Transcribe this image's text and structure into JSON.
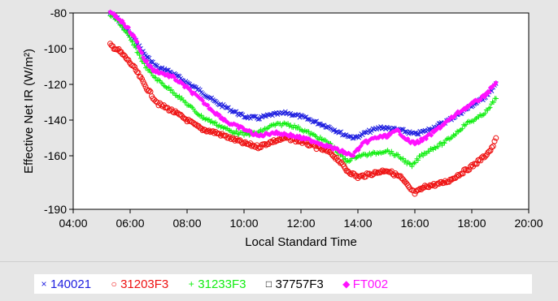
{
  "chart_data": {
    "type": "scatter",
    "xlabel": "Local Standard Time",
    "ylabel": "Effective Net IR (W/m²)",
    "x_ticks": [
      "04:00",
      "06:00",
      "08:00",
      "10:00",
      "12:00",
      "14:00",
      "16:00",
      "18:00",
      "20:00"
    ],
    "y_ticks": [
      "-80",
      "-100",
      "-120",
      "-140",
      "-160",
      "-190"
    ],
    "xlim": [
      4,
      20
    ],
    "ylim": [
      -190,
      -80
    ],
    "grid": false,
    "legend_placement": "bottom",
    "series": [
      {
        "name": "140021",
        "marker": "×",
        "color": "#2020e0",
        "points": [
          [
            5.3,
            -80
          ],
          [
            5.6,
            -84
          ],
          [
            5.9,
            -90
          ],
          [
            6.2,
            -96
          ],
          [
            6.5,
            -103
          ],
          [
            6.8,
            -108
          ],
          [
            7.0,
            -111
          ],
          [
            7.3,
            -112
          ],
          [
            7.6,
            -115
          ],
          [
            8.0,
            -119
          ],
          [
            8.5,
            -124
          ],
          [
            9.0,
            -130
          ],
          [
            9.5,
            -134
          ],
          [
            10.0,
            -138
          ],
          [
            10.5,
            -139
          ],
          [
            11.0,
            -137
          ],
          [
            11.5,
            -136
          ],
          [
            12.0,
            -138
          ],
          [
            12.5,
            -141
          ],
          [
            13.0,
            -144
          ],
          [
            13.5,
            -148
          ],
          [
            13.9,
            -150
          ],
          [
            14.3,
            -147
          ],
          [
            14.8,
            -144
          ],
          [
            15.2,
            -145
          ],
          [
            15.6,
            -146
          ],
          [
            16.0,
            -148
          ],
          [
            16.4,
            -146
          ],
          [
            16.8,
            -143
          ],
          [
            17.2,
            -140
          ],
          [
            17.6,
            -136
          ],
          [
            18.0,
            -132
          ],
          [
            18.4,
            -128
          ],
          [
            18.7,
            -123
          ],
          [
            18.9,
            -119
          ]
        ]
      },
      {
        "name": "31203F3",
        "marker": "○",
        "color": "#ee1111",
        "points": [
          [
            5.3,
            -98
          ],
          [
            5.6,
            -101
          ],
          [
            5.9,
            -106
          ],
          [
            6.2,
            -112
          ],
          [
            6.5,
            -120
          ],
          [
            6.8,
            -127
          ],
          [
            7.0,
            -131
          ],
          [
            7.5,
            -135
          ],
          [
            8.0,
            -140
          ],
          [
            8.5,
            -145
          ],
          [
            9.0,
            -147
          ],
          [
            9.5,
            -150
          ],
          [
            10.0,
            -153
          ],
          [
            10.5,
            -155
          ],
          [
            11.0,
            -152
          ],
          [
            11.5,
            -150
          ],
          [
            12.0,
            -152
          ],
          [
            12.5,
            -155
          ],
          [
            13.0,
            -158
          ],
          [
            13.3,
            -162
          ],
          [
            13.6,
            -168
          ],
          [
            14.0,
            -172
          ],
          [
            14.5,
            -170
          ],
          [
            15.0,
            -168
          ],
          [
            15.5,
            -172
          ],
          [
            15.8,
            -178
          ],
          [
            16.0,
            -181
          ],
          [
            16.4,
            -177
          ],
          [
            16.8,
            -176
          ],
          [
            17.2,
            -174
          ],
          [
            17.6,
            -170
          ],
          [
            18.0,
            -166
          ],
          [
            18.4,
            -161
          ],
          [
            18.7,
            -156
          ],
          [
            18.9,
            -149
          ]
        ]
      },
      {
        "name": "31233F3",
        "marker": "+",
        "color": "#11ee11",
        "points": [
          [
            5.3,
            -81
          ],
          [
            5.6,
            -85
          ],
          [
            5.9,
            -92
          ],
          [
            6.2,
            -100
          ],
          [
            6.5,
            -109
          ],
          [
            6.8,
            -115
          ],
          [
            7.0,
            -118
          ],
          [
            7.5,
            -124
          ],
          [
            8.0,
            -131
          ],
          [
            8.5,
            -138
          ],
          [
            9.0,
            -142
          ],
          [
            9.5,
            -146
          ],
          [
            10.0,
            -148
          ],
          [
            10.5,
            -147
          ],
          [
            11.0,
            -143
          ],
          [
            11.5,
            -142
          ],
          [
            12.0,
            -145
          ],
          [
            12.5,
            -149
          ],
          [
            13.0,
            -153
          ],
          [
            13.3,
            -158
          ],
          [
            13.6,
            -163
          ],
          [
            14.0,
            -160
          ],
          [
            14.5,
            -159
          ],
          [
            15.0,
            -157
          ],
          [
            15.5,
            -161
          ],
          [
            15.9,
            -166
          ],
          [
            16.2,
            -160
          ],
          [
            16.6,
            -156
          ],
          [
            17.0,
            -153
          ],
          [
            17.4,
            -148
          ],
          [
            17.8,
            -142
          ],
          [
            18.2,
            -139
          ],
          [
            18.6,
            -134
          ],
          [
            18.9,
            -126
          ]
        ]
      },
      {
        "name": "37757F3",
        "marker": "□",
        "color": "#000000",
        "points": []
      },
      {
        "name": "FT002",
        "marker": "◆",
        "color": "#ff11ff",
        "points": [
          [
            5.3,
            -80
          ],
          [
            5.6,
            -83
          ],
          [
            5.9,
            -88
          ],
          [
            6.2,
            -95
          ],
          [
            6.5,
            -106
          ],
          [
            6.8,
            -112
          ],
          [
            7.0,
            -113
          ],
          [
            7.5,
            -116
          ],
          [
            8.0,
            -122
          ],
          [
            8.5,
            -129
          ],
          [
            9.0,
            -136
          ],
          [
            9.5,
            -142
          ],
          [
            10.0,
            -145
          ],
          [
            10.5,
            -149
          ],
          [
            11.0,
            -147
          ],
          [
            11.5,
            -148
          ],
          [
            12.0,
            -150
          ],
          [
            12.5,
            -152
          ],
          [
            13.0,
            -155
          ],
          [
            13.5,
            -158
          ],
          [
            13.8,
            -160
          ],
          [
            14.2,
            -153
          ],
          [
            14.6,
            -150
          ],
          [
            15.0,
            -149
          ],
          [
            15.4,
            -146
          ],
          [
            15.8,
            -152
          ],
          [
            16.0,
            -153
          ],
          [
            16.4,
            -150
          ],
          [
            16.8,
            -145
          ],
          [
            17.2,
            -140
          ],
          [
            17.6,
            -135
          ],
          [
            18.0,
            -131
          ],
          [
            18.4,
            -127
          ],
          [
            18.7,
            -122
          ],
          [
            18.9,
            -118
          ]
        ]
      }
    ]
  }
}
